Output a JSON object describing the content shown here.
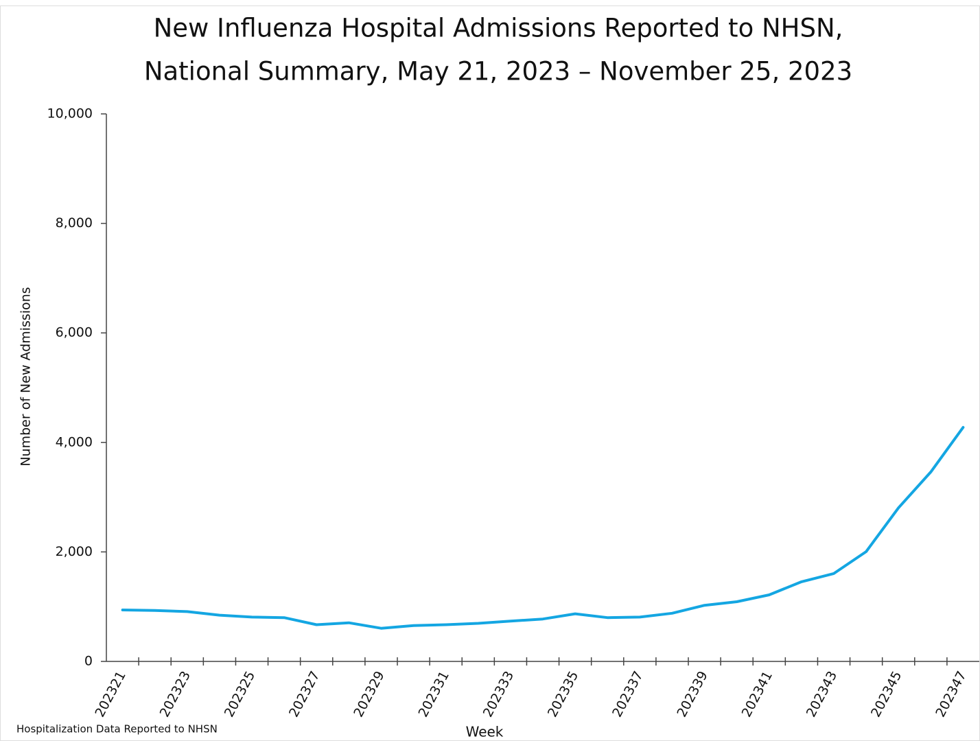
{
  "chart_data": {
    "type": "line",
    "title": [
      "New Influenza Hospital Admissions Reported to NHSN,",
      "National Summary, May 21, 2023 – November 25, 2023"
    ],
    "x_label": "Week",
    "y_label": "Number of New Admissions",
    "footnote": "Hospitalization Data Reported to NHSN",
    "categories": [
      "202321",
      null,
      "202323",
      null,
      "202325",
      null,
      "202327",
      null,
      "202329",
      null,
      "202331",
      null,
      "202333",
      null,
      "202335",
      null,
      "202337",
      null,
      "202339",
      null,
      "202341",
      null,
      "202343",
      null,
      "202345",
      null,
      "202347"
    ],
    "series": [
      {
        "name": "New Admissions",
        "color": "#14a6e2",
        "values": [
          940,
          930,
          910,
          845,
          810,
          800,
          670,
          705,
          605,
          655,
          670,
          695,
          735,
          775,
          870,
          800,
          810,
          880,
          1025,
          1090,
          1215,
          1455,
          1605,
          2005,
          2805,
          3460,
          4275
        ]
      }
    ],
    "ylim": [
      0,
      10000
    ],
    "yticks": [
      0,
      {
        "value": 2000,
        "label": "2,000"
      },
      {
        "value": 4000,
        "label": "4,000"
      },
      {
        "value": 6000,
        "label": "6,000"
      },
      {
        "value": 8000,
        "label": "8,000"
      },
      {
        "value": 10000,
        "label": "10,000"
      }
    ],
    "grid": false
  }
}
